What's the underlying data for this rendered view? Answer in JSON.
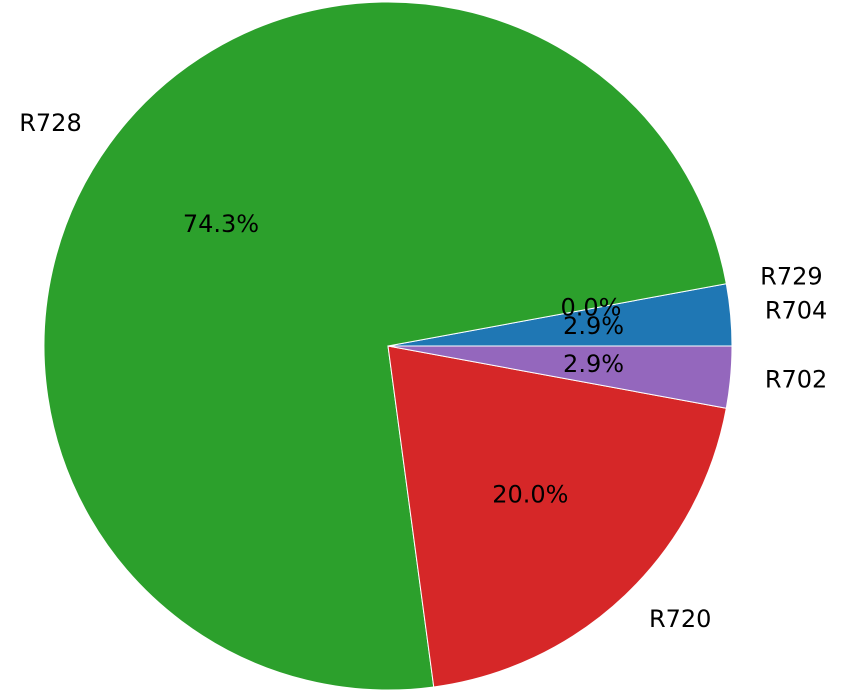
{
  "chart_data": {
    "type": "pie",
    "categories": [
      "R704",
      "R729",
      "R728",
      "R720",
      "R702"
    ],
    "values": [
      2.9,
      0.0,
      74.3,
      20.0,
      2.9
    ],
    "value_labels": [
      "2.9%",
      "0.0%",
      "74.3%",
      "20.0%",
      "2.9%"
    ],
    "colors": [
      "#1f77b4",
      "#ff7f0e",
      "#2ca02c",
      "#d62728",
      "#9467bd"
    ]
  }
}
